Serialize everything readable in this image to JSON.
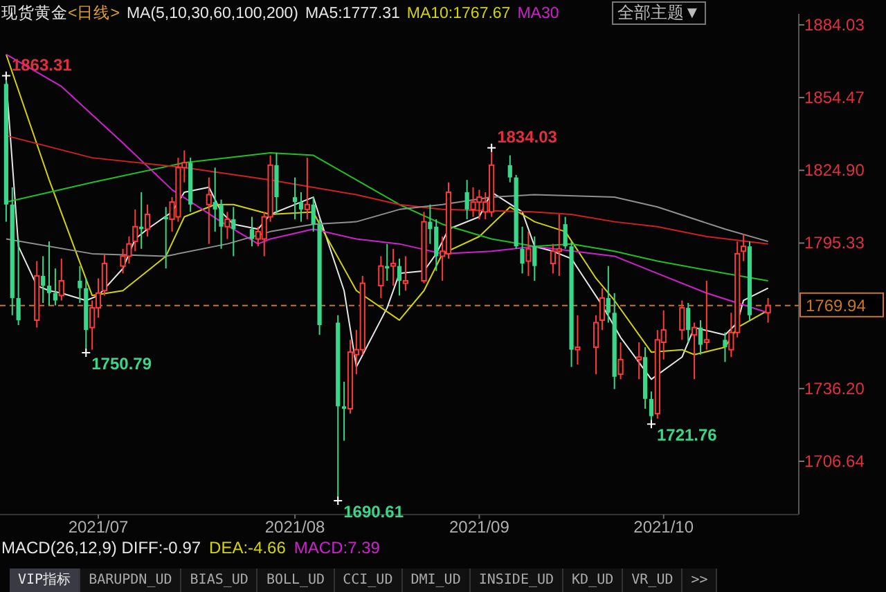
{
  "chart_data": {
    "type": "candlestick",
    "title": "现货黄金",
    "subtitle": "<日线>",
    "legend_title": "MA(5,10,30,60,100,200)",
    "legend": "top",
    "marker": "none",
    "x": [
      "2021-06-16",
      "2021-06-17",
      "2021-06-18",
      "2021-06-21",
      "2021-06-22",
      "2021-06-23",
      "2021-06-24",
      "2021-06-25",
      "2021-06-28",
      "2021-06-29",
      "2021-06-30",
      "2021-07-01",
      "2021-07-02",
      "2021-07-05",
      "2021-07-06",
      "2021-07-07",
      "2021-07-08",
      "2021-07-09",
      "2021-07-12",
      "2021-07-13",
      "2021-07-14",
      "2021-07-15",
      "2021-07-16",
      "2021-07-19",
      "2021-07-20",
      "2021-07-21",
      "2021-07-22",
      "2021-07-23",
      "2021-07-26",
      "2021-07-27",
      "2021-07-28",
      "2021-07-29",
      "2021-07-30",
      "2021-08-02",
      "2021-08-03",
      "2021-08-04",
      "2021-08-05",
      "2021-08-06",
      "2021-08-09",
      "2021-08-10",
      "2021-08-11",
      "2021-08-12",
      "2021-08-13",
      "2021-08-16",
      "2021-08-17",
      "2021-08-18",
      "2021-08-19",
      "2021-08-20",
      "2021-08-23",
      "2021-08-24",
      "2021-08-25",
      "2021-08-26",
      "2021-08-27",
      "2021-08-30",
      "2021-08-31",
      "2021-09-01",
      "2021-09-02",
      "2021-09-03",
      "2021-09-06",
      "2021-09-07",
      "2021-09-08",
      "2021-09-09",
      "2021-09-10",
      "2021-09-13",
      "2021-09-14",
      "2021-09-15",
      "2021-09-16",
      "2021-09-17",
      "2021-09-20",
      "2021-09-21",
      "2021-09-22",
      "2021-09-23",
      "2021-09-24",
      "2021-09-27",
      "2021-09-28",
      "2021-09-29",
      "2021-09-30",
      "2021-10-01",
      "2021-10-04",
      "2021-10-05",
      "2021-10-06",
      "2021-10-07",
      "2021-10-08",
      "2021-10-11",
      "2021-10-12",
      "2021-10-13",
      "2021-10-14",
      "2021-10-15",
      "2021-10-18"
    ],
    "ohlc": [
      [
        1860,
        1863.31,
        1804,
        1811
      ],
      [
        1811,
        1818,
        1766,
        1773
      ],
      [
        1773,
        1797,
        1762,
        1764
      ],
      [
        1764,
        1788,
        1761,
        1782
      ],
      [
        1782,
        1790,
        1771,
        1778
      ],
      [
        1778,
        1796,
        1770,
        1775
      ],
      [
        1775,
        1785,
        1770,
        1772
      ],
      [
        1774,
        1789,
        1772,
        1780
      ],
      [
        1780,
        1786,
        1771,
        1777
      ],
      [
        1777,
        1781,
        1750.79,
        1760
      ],
      [
        1761,
        1772,
        1752,
        1769
      ],
      [
        1769,
        1781,
        1765,
        1775
      ],
      [
        1776,
        1791,
        1774,
        1787
      ],
      [
        1786,
        1793,
        1783,
        1790
      ],
      [
        1790,
        1798,
        1787,
        1795
      ],
      [
        1796,
        1809,
        1792,
        1802
      ],
      [
        1802,
        1816,
        1793,
        1801
      ],
      [
        1801,
        1811,
        1798,
        1807
      ],
      [
        1806,
        1810,
        1785,
        1805
      ],
      [
        1805,
        1814,
        1800,
        1812
      ],
      [
        1806,
        1830,
        1804,
        1826
      ],
      [
        1826,
        1833,
        1820,
        1828
      ],
      [
        1828,
        1830,
        1808,
        1811
      ],
      [
        1811,
        1822,
        1795,
        1815
      ],
      [
        1812,
        1826,
        1800,
        1809
      ],
      [
        1811,
        1813,
        1793,
        1802
      ],
      [
        1802,
        1808,
        1797,
        1805
      ],
      [
        1805,
        1810,
        1790,
        1801
      ],
      [
        1801,
        1806,
        1794,
        1797
      ],
      [
        1797,
        1802,
        1794,
        1800
      ],
      [
        1797,
        1808,
        1790,
        1806
      ],
      [
        1806,
        1831,
        1804,
        1827
      ],
      [
        1827,
        1832,
        1807,
        1814
      ],
      [
        1814,
        1822,
        1805,
        1812
      ],
      [
        1812,
        1816,
        1804,
        1809
      ],
      [
        1809,
        1830,
        1805,
        1811
      ],
      [
        1811,
        1814,
        1800,
        1803
      ],
      [
        1803,
        1805,
        1758,
        1762
      ],
      [
        1763,
        1766,
        1690.61,
        1729
      ],
      [
        1729,
        1739,
        1715,
        1728
      ],
      [
        1728,
        1756,
        1726,
        1751
      ],
      [
        1750,
        1760,
        1742,
        1752
      ],
      [
        1752,
        1782,
        1750,
        1779
      ],
      [
        1778,
        1790,
        1773,
        1786
      ],
      [
        1786,
        1795,
        1780,
        1785
      ],
      [
        1786,
        1793,
        1778,
        1787
      ],
      [
        1786,
        1789,
        1774,
        1780
      ],
      [
        1779,
        1790,
        1776,
        1780
      ],
      [
        1780,
        1808,
        1779,
        1804
      ],
      [
        1804,
        1811,
        1795,
        1801
      ],
      [
        1802,
        1805,
        1784,
        1790
      ],
      [
        1790,
        1798,
        1780,
        1792
      ],
      [
        1791,
        1820,
        1789,
        1816
      ],
      [
        1816,
        1821,
        1805,
        1809
      ],
      [
        1809,
        1818,
        1806,
        1812
      ],
      [
        1812,
        1817,
        1805,
        1814
      ],
      [
        1808,
        1816,
        1805,
        1812
      ],
      [
        1808,
        1834.03,
        1806,
        1827
      ],
      [
        1827,
        1831,
        1820,
        1822
      ],
      [
        1822,
        1823,
        1793,
        1794
      ],
      [
        1793,
        1802,
        1783,
        1787
      ],
      [
        1788,
        1800,
        1782,
        1793
      ],
      [
        1794,
        1798,
        1780,
        1786
      ],
      [
        1787,
        1795,
        1783,
        1792
      ],
      [
        1792,
        1807,
        1782,
        1793
      ],
      [
        1803,
        1806,
        1793,
        1794
      ],
      [
        1794,
        1796,
        1745,
        1752
      ],
      [
        1752,
        1766,
        1746,
        1753
      ],
      [
        1753,
        1766,
        1742,
        1763
      ],
      [
        1764,
        1777,
        1760,
        1773
      ],
      [
        1773,
        1786,
        1763,
        1767
      ],
      [
        1767,
        1775,
        1736,
        1741
      ],
      [
        1742,
        1755,
        1740,
        1748
      ],
      [
        1748,
        1755,
        1740,
        1749
      ],
      [
        1749,
        1753,
        1728,
        1732
      ],
      [
        1732,
        1735,
        1721.76,
        1725
      ],
      [
        1726,
        1760,
        1724,
        1756
      ],
      [
        1755,
        1768,
        1748,
        1760
      ],
      [
        1760,
        1772,
        1756,
        1769
      ],
      [
        1769,
        1771,
        1755,
        1760
      ],
      [
        1758,
        1763,
        1740,
        1761
      ],
      [
        1761,
        1764,
        1750,
        1754
      ],
      [
        1755,
        1780,
        1752,
        1756
      ],
      [
        1756,
        1759,
        1747,
        1753
      ],
      [
        1752,
        1767,
        1749,
        1759
      ],
      [
        1759,
        1796,
        1757,
        1791
      ],
      [
        1792,
        1799,
        1788,
        1794
      ],
      [
        1794,
        1796,
        1764,
        1766
      ],
      [
        1767,
        1773,
        1763,
        1769.94
      ]
    ],
    "series": [
      {
        "type": "line",
        "name": "MA5:1777.31",
        "color": "#e6e6e6",
        "x": [
          "2021-06-16",
          "2021-06-18",
          "2021-06-21",
          "2021-06-23",
          "2021-06-25",
          "2021-06-29",
          "2021-07-01",
          "2021-07-05",
          "2021-07-07",
          "2021-07-09",
          "2021-07-13",
          "2021-07-15",
          "2021-07-19",
          "2021-07-21",
          "2021-07-23",
          "2021-07-27",
          "2021-07-29",
          "2021-08-03",
          "2021-08-05",
          "2021-08-06",
          "2021-08-10",
          "2021-08-12",
          "2021-08-17",
          "2021-08-19",
          "2021-08-23",
          "2021-08-25",
          "2021-08-27",
          "2021-09-01",
          "2021-09-03",
          "2021-09-08",
          "2021-09-10",
          "2021-09-13",
          "2021-09-16",
          "2021-09-21",
          "2021-09-24",
          "2021-09-29",
          "2021-10-04",
          "2021-10-06",
          "2021-10-11",
          "2021-10-13",
          "2021-10-14",
          "2021-10-18"
        ],
        "values": [
          1862,
          1794,
          1778,
          1776,
          1775,
          1772,
          1774,
          1785,
          1797,
          1801,
          1808,
          1816,
          1818,
          1808,
          1803,
          1801,
          1807,
          1812,
          1814,
          1806,
          1776,
          1745,
          1769,
          1783,
          1784,
          1791,
          1801,
          1806,
          1816,
          1808,
          1794,
          1792,
          1789,
          1770,
          1757,
          1740,
          1749,
          1761,
          1758,
          1763,
          1772,
          1777
        ]
      },
      {
        "type": "line",
        "name": "MA10:1767.67",
        "color": "#d4d400",
        "x": [
          "2021-06-16",
          "2021-06-23",
          "2021-06-30",
          "2021-07-05",
          "2021-07-12",
          "2021-07-15",
          "2021-07-20",
          "2021-07-23",
          "2021-07-29",
          "2021-08-05",
          "2021-08-06",
          "2021-08-12",
          "2021-08-19",
          "2021-08-23",
          "2021-08-26",
          "2021-09-01",
          "2021-09-06",
          "2021-09-10",
          "2021-09-15",
          "2021-09-20",
          "2021-09-23",
          "2021-09-29",
          "2021-10-04",
          "2021-10-06",
          "2021-10-11",
          "2021-10-13",
          "2021-10-18"
        ],
        "values": [
          1872,
          1821,
          1774,
          1776,
          1790,
          1806,
          1811,
          1811,
          1807,
          1808,
          1803,
          1776,
          1764,
          1776,
          1791,
          1798,
          1810,
          1804,
          1800,
          1781,
          1772,
          1751,
          1752,
          1750,
          1753,
          1761,
          1768
        ]
      },
      {
        "type": "line",
        "name": "MA30",
        "color": "#d020d0",
        "x": [
          "2021-06-16",
          "2021-06-25",
          "2021-07-05",
          "2021-07-13",
          "2021-07-21",
          "2021-07-27",
          "2021-07-29",
          "2021-08-05",
          "2021-08-12",
          "2021-08-19",
          "2021-08-26",
          "2021-09-03",
          "2021-09-10",
          "2021-09-23",
          "2021-09-30",
          "2021-10-08",
          "2021-10-13",
          "2021-10-18"
        ],
        "values": [
          1872,
          1859,
          1836,
          1817,
          1804,
          1795,
          1797,
          1801,
          1797,
          1795,
          1791,
          1792,
          1794,
          1790,
          1783,
          1775,
          1771,
          1767
        ]
      },
      {
        "type": "line",
        "color": "#20c020",
        "x": [
          "2021-06-16",
          "2021-06-30",
          "2021-07-15",
          "2021-07-29",
          "2021-08-05",
          "2021-08-12",
          "2021-08-19",
          "2021-08-26",
          "2021-09-03",
          "2021-09-10",
          "2021-09-16",
          "2021-09-23",
          "2021-09-30",
          "2021-10-11",
          "2021-10-18"
        ],
        "values": [
          1812,
          1820,
          1828,
          1832,
          1831,
          1821,
          1811,
          1803,
          1797,
          1794,
          1795,
          1792,
          1788,
          1783,
          1780
        ]
      },
      {
        "type": "line",
        "color": "#d02020",
        "x": [
          "2021-06-16",
          "2021-06-30",
          "2021-07-15",
          "2021-07-29",
          "2021-08-12",
          "2021-08-19",
          "2021-08-26",
          "2021-09-10",
          "2021-09-16",
          "2021-09-23",
          "2021-09-30",
          "2021-10-08",
          "2021-10-18"
        ],
        "values": [
          1839,
          1830,
          1826,
          1821,
          1815,
          1811,
          1809,
          1808,
          1807,
          1804,
          1802,
          1798,
          1795
        ]
      },
      {
        "type": "line",
        "color": "#909090",
        "x": [
          "2021-06-16",
          "2021-06-30",
          "2021-07-12",
          "2021-07-22",
          "2021-07-29",
          "2021-08-05",
          "2021-08-12",
          "2021-08-19",
          "2021-08-26",
          "2021-09-03",
          "2021-09-10",
          "2021-09-23",
          "2021-09-30",
          "2021-10-11",
          "2021-10-18"
        ],
        "values": [
          1797,
          1791,
          1790,
          1795,
          1800,
          1803,
          1804,
          1809,
          1811,
          1814,
          1815,
          1814,
          1810,
          1801,
          1796
        ]
      }
    ],
    "xlim": [
      "2021-06-15",
      "2021-10-23"
    ],
    "ylim": [
      1685,
      1888.5
    ],
    "yticks": [
      1884.03,
      1854.47,
      {
        "value": 1824.9,
        "label": "1824.90"
      },
      1795.33,
      {
        "value": 1736.2,
        "label": "1736.20"
      },
      1706.64
    ],
    "xticks": [
      {
        "value": "2021-07-01",
        "label": "2021/07"
      },
      {
        "value": "2021-08-02",
        "label": "2021/08"
      },
      {
        "value": "2021-09-01",
        "label": "2021/09"
      },
      {
        "value": "2021-10-01",
        "label": "2021/10"
      }
    ],
    "ref_lines": [
      {
        "axis": "y",
        "value": 1769.94,
        "label": "1769.94",
        "color": "#c87820",
        "line_style": "dashed"
      }
    ],
    "annotations": [
      {
        "text": "1863.31",
        "x": "2021-06-16",
        "y": 1863.31
      },
      {
        "text": "1750.79",
        "x": "2021-06-29",
        "y": 1750.79
      },
      {
        "text": "1690.61",
        "x": "2021-08-09",
        "y": 1690.61
      },
      {
        "text": "1834.03",
        "x": "2021-09-03",
        "y": 1834.03
      },
      {
        "text": "1721.76",
        "x": "2021-09-29",
        "y": 1721.76
      },
      "全部主题▼",
      "MACD(26,12,9) DIFF:-0.97",
      "DEA:-4.66",
      "MACD:7.39",
      "VIP指标",
      "BARUPDN_UD",
      "BIAS_UD",
      "BOLL_UD",
      "CCI_UD",
      "DMI_UD",
      "INSIDE_UD",
      "KD_UD",
      "VR_UD",
      ">>"
    ]
  }
}
